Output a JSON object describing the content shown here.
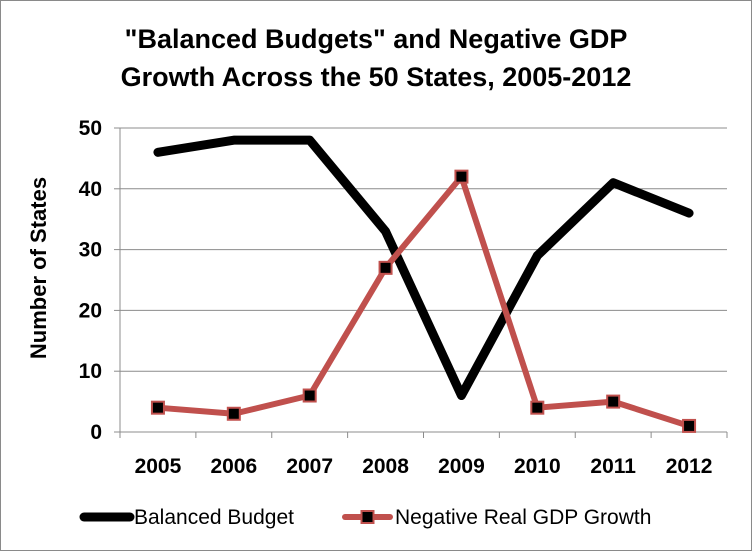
{
  "chart_data": {
    "type": "line",
    "title_line1": "\"Balanced Budgets\" and Negative GDP",
    "title_line2": "Growth Across the 50 States, 2005-2012",
    "ylabel": "Number of States",
    "xlabel": "",
    "categories": [
      "2005",
      "2006",
      "2007",
      "2008",
      "2009",
      "2010",
      "2011",
      "2012"
    ],
    "ylim": [
      0,
      50
    ],
    "yticks": [
      0,
      10,
      20,
      30,
      40,
      50
    ],
    "grid": "horizontal",
    "legend_position": "bottom",
    "series": [
      {
        "name": "Balanced Budget",
        "color": "#000000",
        "marker": "none",
        "values": [
          46,
          48,
          48,
          33,
          6,
          29,
          41,
          36
        ]
      },
      {
        "name": "Negative Real GDP Growth",
        "color": "#c0504d",
        "marker": "square",
        "marker_color": "#000000",
        "values": [
          4,
          3,
          6,
          27,
          42,
          4,
          5,
          1
        ]
      }
    ]
  }
}
